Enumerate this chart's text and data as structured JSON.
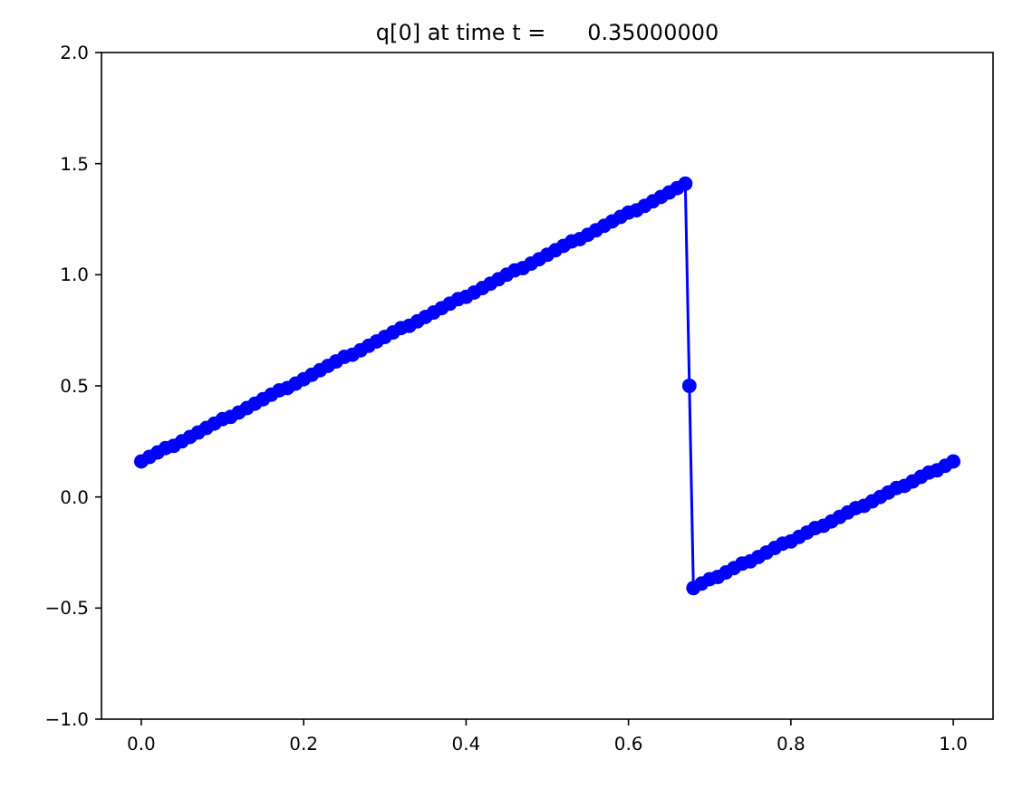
{
  "chart_data": {
    "type": "line",
    "title": "q[0] at time t =      0.35000000",
    "marker": "circle",
    "line_style": "solid",
    "grid": false,
    "xlim": [
      -0.049,
      1.049
    ],
    "ylim": [
      -1.0,
      2.0
    ],
    "xticks": [
      {
        "value": 0,
        "label": "0.0"
      },
      {
        "value": 0.2,
        "label": "0.2"
      },
      {
        "value": 0.4,
        "label": "0.4"
      },
      {
        "value": 0.6,
        "label": "0.6"
      },
      {
        "value": 0.8,
        "label": "0.8"
      },
      {
        "value": 1,
        "label": "1.0"
      }
    ],
    "yticks": [
      {
        "value": -1,
        "label": "−1.0"
      },
      {
        "value": -0.5,
        "label": "−0.5"
      },
      {
        "value": 0,
        "label": "0.0"
      },
      {
        "value": 0.5,
        "label": "0.5"
      },
      {
        "value": 1,
        "label": "1.0"
      },
      {
        "value": 1.5,
        "label": "1.5"
      },
      {
        "value": 2,
        "label": "2.0"
      }
    ],
    "series": [
      {
        "color": "#0000ff",
        "x": [
          0,
          0.01,
          0.02,
          0.03,
          0.04,
          0.05,
          0.06,
          0.07,
          0.08,
          0.09,
          0.1,
          0.11,
          0.12,
          0.13,
          0.14,
          0.15,
          0.16,
          0.17,
          0.18,
          0.19,
          0.2,
          0.21,
          0.22,
          0.23,
          0.24,
          0.25,
          0.26,
          0.27,
          0.28,
          0.29,
          0.3,
          0.31,
          0.32,
          0.33,
          0.34,
          0.35,
          0.36,
          0.37,
          0.38,
          0.39,
          0.4,
          0.41,
          0.42,
          0.43,
          0.44,
          0.45,
          0.46,
          0.47,
          0.48,
          0.49,
          0.5,
          0.51,
          0.52,
          0.53,
          0.54,
          0.55,
          0.56,
          0.57,
          0.58,
          0.59,
          0.6,
          0.61,
          0.62,
          0.63,
          0.64,
          0.65,
          0.66,
          0.67,
          0.675,
          0.68,
          0.69,
          0.7,
          0.71,
          0.72,
          0.73,
          0.74,
          0.75,
          0.76,
          0.77,
          0.78,
          0.79,
          0.8,
          0.81,
          0.82,
          0.83,
          0.84,
          0.85,
          0.86,
          0.87,
          0.88,
          0.89,
          0.9,
          0.91,
          0.92,
          0.93,
          0.94,
          0.95,
          0.96,
          0.97,
          0.98,
          0.99,
          1.0
        ],
        "values": [
          0.16,
          0.18,
          0.2,
          0.22,
          0.23,
          0.25,
          0.27,
          0.29,
          0.31,
          0.33,
          0.35,
          0.36,
          0.38,
          0.4,
          0.42,
          0.44,
          0.46,
          0.48,
          0.49,
          0.51,
          0.53,
          0.55,
          0.57,
          0.59,
          0.61,
          0.63,
          0.64,
          0.66,
          0.68,
          0.7,
          0.72,
          0.74,
          0.76,
          0.77,
          0.79,
          0.81,
          0.83,
          0.85,
          0.87,
          0.89,
          0.9,
          0.92,
          0.94,
          0.96,
          0.98,
          1.0,
          1.02,
          1.03,
          1.05,
          1.07,
          1.09,
          1.11,
          1.13,
          1.15,
          1.16,
          1.18,
          1.2,
          1.22,
          1.24,
          1.26,
          1.28,
          1.29,
          1.31,
          1.33,
          1.35,
          1.37,
          1.39,
          1.41,
          0.5,
          -0.41,
          -0.39,
          -0.37,
          -0.36,
          -0.34,
          -0.32,
          -0.3,
          -0.29,
          -0.27,
          -0.25,
          -0.23,
          -0.21,
          -0.2,
          -0.18,
          -0.16,
          -0.14,
          -0.13,
          -0.11,
          -0.09,
          -0.07,
          -0.05,
          -0.04,
          -0.02,
          0,
          0.02,
          0.04,
          0.05,
          0.07,
          0.09,
          0.11,
          0.12,
          0.14,
          0.16
        ]
      }
    ]
  }
}
